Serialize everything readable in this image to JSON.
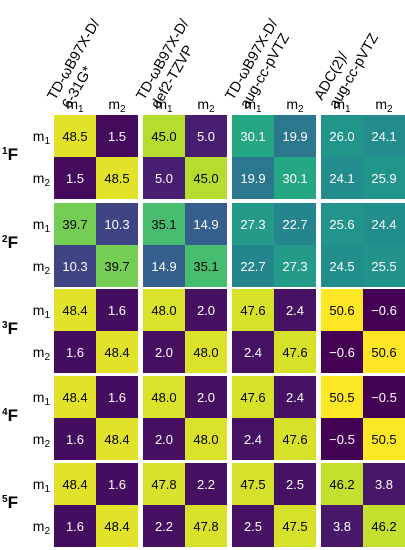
{
  "chart_data": {
    "type": "heatmap",
    "colormap": "viridis",
    "methods": [
      {
        "line1": "TD-ωB97X-D/",
        "line2": "6-31G*"
      },
      {
        "line1": "TD-ωB97X-D/",
        "line2": "def2-TZVP"
      },
      {
        "line1": "TD-ωB97X-D/",
        "line2": "aug-cc-pVTZ"
      },
      {
        "line1": "ADC(2)/",
        "line2": "aug-cc-pVTZ"
      }
    ],
    "column_labels": [
      {
        "base": "m",
        "sub": "1"
      },
      {
        "base": "m",
        "sub": "2"
      }
    ],
    "row_labels": [
      {
        "base": "m",
        "sub": "1"
      },
      {
        "base": "m",
        "sub": "2"
      }
    ],
    "panels": [
      {
        "sup": "1",
        "base": "F",
        "matrices": [
          [
            [
              "48.5",
              "1.5"
            ],
            [
              "1.5",
              "48.5"
            ]
          ],
          [
            [
              "45.0",
              "5.0"
            ],
            [
              "5.0",
              "45.0"
            ]
          ],
          [
            [
              "30.1",
              "19.9"
            ],
            [
              "19.9",
              "30.1"
            ]
          ],
          [
            [
              "26.0",
              "24.1"
            ],
            [
              "24.1",
              "25.9"
            ]
          ]
        ]
      },
      {
        "sup": "2",
        "base": "F",
        "matrices": [
          [
            [
              "39.7",
              "10.3"
            ],
            [
              "10.3",
              "39.7"
            ]
          ],
          [
            [
              "35.1",
              "14.9"
            ],
            [
              "14.9",
              "35.1"
            ]
          ],
          [
            [
              "27.3",
              "22.7"
            ],
            [
              "22.7",
              "27.3"
            ]
          ],
          [
            [
              "25.6",
              "24.4"
            ],
            [
              "24.5",
              "25.5"
            ]
          ]
        ]
      },
      {
        "sup": "3",
        "base": "F",
        "matrices": [
          [
            [
              "48.4",
              "1.6"
            ],
            [
              "1.6",
              "48.4"
            ]
          ],
          [
            [
              "48.0",
              "2.0"
            ],
            [
              "2.0",
              "48.0"
            ]
          ],
          [
            [
              "47.6",
              "2.4"
            ],
            [
              "2.4",
              "47.6"
            ]
          ],
          [
            [
              "50.6",
              "−0.6"
            ],
            [
              "−0.6",
              "50.6"
            ]
          ]
        ]
      },
      {
        "sup": "4",
        "base": "F",
        "matrices": [
          [
            [
              "48.4",
              "1.6"
            ],
            [
              "1.6",
              "48.4"
            ]
          ],
          [
            [
              "48.0",
              "2.0"
            ],
            [
              "2.0",
              "48.0"
            ]
          ],
          [
            [
              "47.6",
              "2.4"
            ],
            [
              "2.4",
              "47.6"
            ]
          ],
          [
            [
              "50.5",
              "−0.5"
            ],
            [
              "−0.5",
              "50.5"
            ]
          ]
        ]
      },
      {
        "sup": "5",
        "base": "F",
        "matrices": [
          [
            [
              "48.4",
              "1.6"
            ],
            [
              "1.6",
              "48.4"
            ]
          ],
          [
            [
              "47.8",
              "2.2"
            ],
            [
              "2.2",
              "47.8"
            ]
          ],
          [
            [
              "47.5",
              "2.5"
            ],
            [
              "2.5",
              "47.5"
            ]
          ],
          [
            [
              "46.2",
              "3.8"
            ],
            [
              "3.8",
              "46.2"
            ]
          ]
        ]
      }
    ],
    "value_range": [
      -0.6,
      50.6
    ]
  }
}
